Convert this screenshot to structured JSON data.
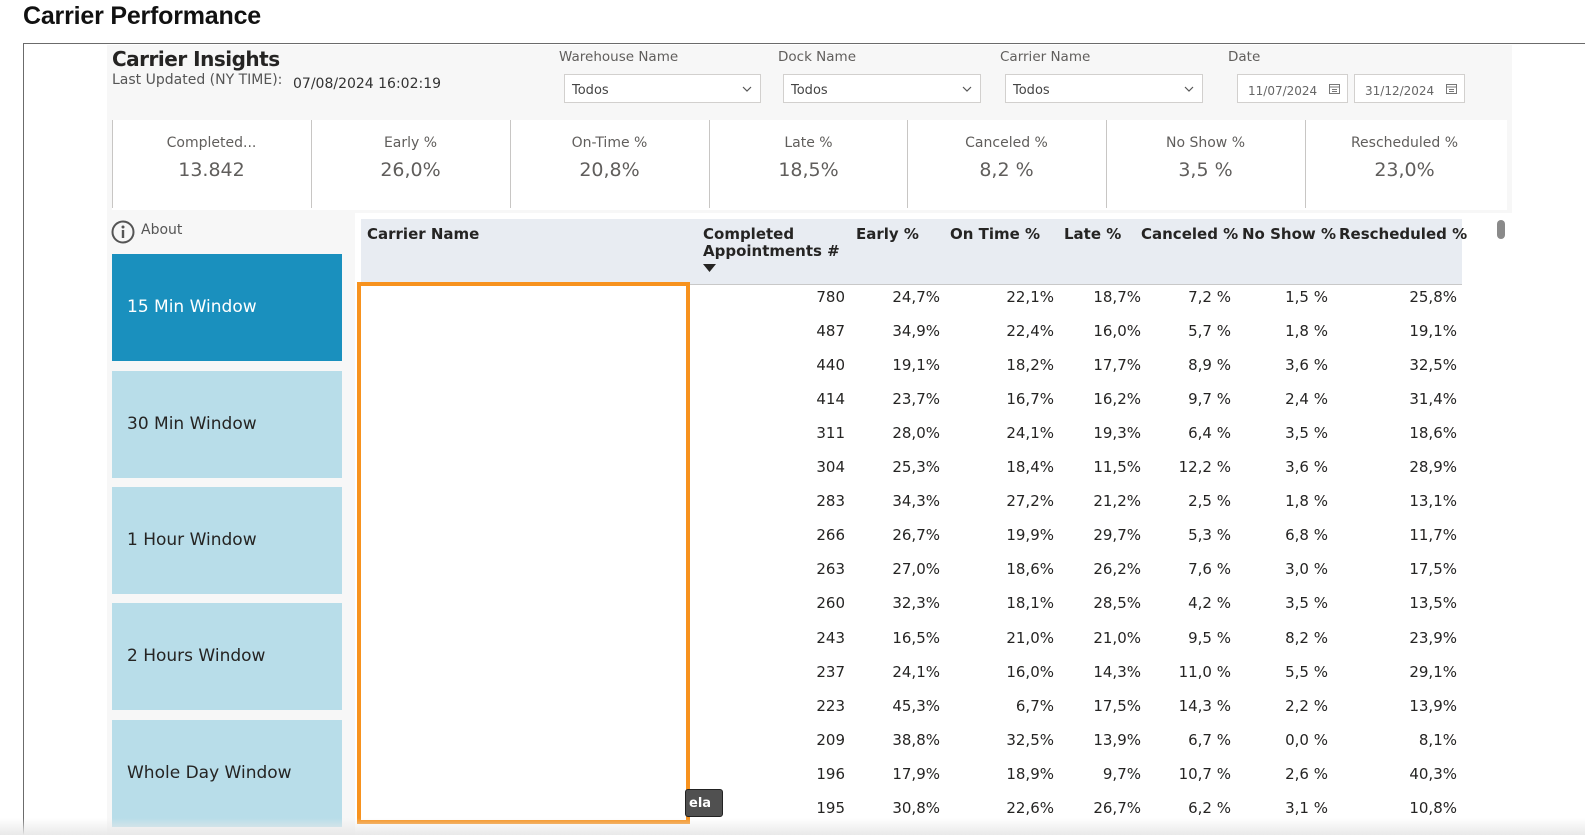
{
  "page_title": "Carrier Performance",
  "header": {
    "title": "Carrier Insights",
    "last_updated_label": "Last Updated (NY TIME):",
    "last_updated_value": "07/08/2024 16:02:19"
  },
  "filters": {
    "warehouse": {
      "label": "Warehouse Name",
      "value": "Todos"
    },
    "dock": {
      "label": "Dock Name",
      "value": "Todos"
    },
    "carrier": {
      "label": "Carrier Name",
      "value": "Todos"
    },
    "date": {
      "label": "Date",
      "from": "11/07/2024",
      "to": "31/12/2024"
    }
  },
  "kpis": [
    {
      "label": "Completed...",
      "value": "13.842"
    },
    {
      "label": "Early %",
      "value": "26,0%"
    },
    {
      "label": "On-Time %",
      "value": "20,8%"
    },
    {
      "label": "Late %",
      "value": "18,5%"
    },
    {
      "label": "Canceled %",
      "value": "8,2 %"
    },
    {
      "label": "No Show %",
      "value": "3,5 %"
    },
    {
      "label": "Rescheduled %",
      "value": "23,0%"
    }
  ],
  "about_label": "About",
  "windows": [
    {
      "label": "15 Min Window",
      "active": true
    },
    {
      "label": "30 Min Window",
      "active": false
    },
    {
      "label": "1 Hour Window",
      "active": false
    },
    {
      "label": "2 Hours Window",
      "active": false
    },
    {
      "label": "Whole Day Window",
      "active": false
    }
  ],
  "table": {
    "columns": {
      "carrier": "Carrier Name",
      "completed_line1": "Completed",
      "completed_line2": "Appointments #",
      "early": "Early %",
      "ontime": "On Time %",
      "late": "Late %",
      "canceled": "Canceled %",
      "noshow": "No Show %",
      "rescheduled": "Rescheduled %"
    },
    "rows": [
      [
        "780",
        "24,7%",
        "22,1%",
        "18,7%",
        "7,2 %",
        "1,5 %",
        "25,8%"
      ],
      [
        "487",
        "34,9%",
        "22,4%",
        "16,0%",
        "5,7 %",
        "1,8 %",
        "19,1%"
      ],
      [
        "440",
        "19,1%",
        "18,2%",
        "17,7%",
        "8,9 %",
        "3,6 %",
        "32,5%"
      ],
      [
        "414",
        "23,7%",
        "16,7%",
        "16,2%",
        "9,7 %",
        "2,4 %",
        "31,4%"
      ],
      [
        "311",
        "28,0%",
        "24,1%",
        "19,3%",
        "6,4 %",
        "3,5 %",
        "18,6%"
      ],
      [
        "304",
        "25,3%",
        "18,4%",
        "11,5%",
        "12,2 %",
        "3,6 %",
        "28,9%"
      ],
      [
        "283",
        "34,3%",
        "27,2%",
        "21,2%",
        "2,5 %",
        "1,8 %",
        "13,1%"
      ],
      [
        "266",
        "26,7%",
        "19,9%",
        "29,7%",
        "5,3 %",
        "6,8 %",
        "11,7%"
      ],
      [
        "263",
        "27,0%",
        "18,6%",
        "26,2%",
        "7,6 %",
        "3,0 %",
        "17,5%"
      ],
      [
        "260",
        "32,3%",
        "18,1%",
        "28,5%",
        "4,2 %",
        "3,5 %",
        "13,5%"
      ],
      [
        "243",
        "16,5%",
        "21,0%",
        "21,0%",
        "9,5 %",
        "8,2 %",
        "23,9%"
      ],
      [
        "237",
        "24,1%",
        "16,0%",
        "14,3%",
        "11,0 %",
        "5,5 %",
        "29,1%"
      ],
      [
        "223",
        "45,3%",
        "6,7%",
        "17,5%",
        "14,3 %",
        "2,2 %",
        "13,9%"
      ],
      [
        "209",
        "38,8%",
        "32,5%",
        "13,9%",
        "6,7 %",
        "0,0 %",
        "8,1%"
      ],
      [
        "196",
        "17,9%",
        "18,9%",
        "9,7%",
        "10,7 %",
        "2,6 %",
        "40,3%"
      ],
      [
        "195",
        "30,8%",
        "22,6%",
        "26,7%",
        "6,2 %",
        "3,1 %",
        "10,8%"
      ]
    ]
  },
  "tooltip_text": "ela",
  "colors": {
    "active_window": "#1a90be",
    "inactive_window": "#b8dde9",
    "highlight_border": "#f7921e",
    "header_bg": "#e8ecf2"
  }
}
